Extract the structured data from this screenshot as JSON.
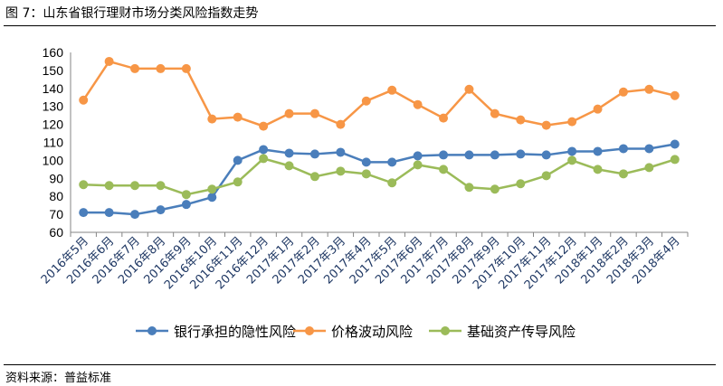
{
  "title": "图 7：山东省银行理财市场分类风险指数走势",
  "source": "资料来源：普益标准",
  "chart_data": {
    "type": "line",
    "title": "图 7：山东省银行理财市场分类风险指数走势",
    "xlabel": "",
    "ylabel": "",
    "ylim": [
      60,
      160
    ],
    "yticks": [
      60,
      70,
      80,
      90,
      100,
      110,
      120,
      130,
      140,
      150,
      160
    ],
    "grid": false,
    "legend_position": "bottom",
    "categories": [
      "2016年5月",
      "2016年6月",
      "2016年7月",
      "2016年8月",
      "2016年9月",
      "2016年10月",
      "2016年11月",
      "2016年12月",
      "2017年1月",
      "2017年2月",
      "2017年3月",
      "2017年4月",
      "2017年5月",
      "2017年6月",
      "2017年7月",
      "2017年8月",
      "2017年9月",
      "2017年10月",
      "2017年11月",
      "2017年12月",
      "2018年1月",
      "2018年2月",
      "2018年3月",
      "2018年4月"
    ],
    "series": [
      {
        "name": "银行承担的隐性风险",
        "color": "#4a7ebb",
        "values": [
          71,
          71,
          70,
          72.5,
          75.5,
          79.5,
          100,
          106,
          104,
          103.5,
          104.5,
          99,
          99,
          102.5,
          103,
          103,
          103,
          103.5,
          103,
          105,
          105,
          106.5,
          106.5,
          109
        ]
      },
      {
        "name": "价格波动风险",
        "color": "#f79646",
        "values": [
          133.5,
          155,
          151,
          151,
          151,
          123,
          124,
          119,
          126,
          126,
          120,
          133,
          139,
          131,
          123.5,
          139.5,
          126,
          122.5,
          119.5,
          121.5,
          128.5,
          138,
          139.5,
          136
        ]
      },
      {
        "name": "基础资产传导风险",
        "color": "#9bbb59",
        "values": [
          86.5,
          86,
          86,
          86,
          81,
          84,
          88,
          101,
          97,
          91,
          94,
          92.5,
          87.5,
          97.5,
          95,
          85,
          84,
          87,
          91.5,
          100,
          95,
          92.5,
          96,
          100.5
        ]
      }
    ]
  }
}
